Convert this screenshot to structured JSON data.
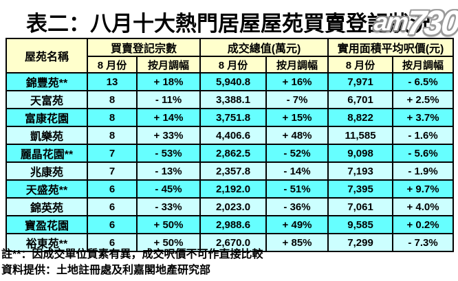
{
  "page": {
    "title": "表二：八月十大熱門居屋屋苑買賣登記狀況",
    "watermark": {
      "prefix": "am",
      "suffix": "730"
    }
  },
  "colors": {
    "header_bg": "#FFFFCC",
    "row_bright": "#66FFFF",
    "row_light": "#CCFFFF",
    "border": "#000000",
    "text": "#000000"
  },
  "table": {
    "name_header": "屋苑名稱",
    "groups": [
      {
        "label": "買賣登記宗數"
      },
      {
        "label": "成交總值(萬元)"
      },
      {
        "label": "實用面積平均呎價(元)"
      }
    ],
    "sub_month": "8 月份",
    "sub_change": "按月調幅",
    "rows": [
      {
        "name": "錦豐苑**",
        "count": "13",
        "count_change": "+ 18%",
        "value": "5,940.8",
        "value_change": "+ 16%",
        "price": "7,971",
        "price_change": "- 6.5%"
      },
      {
        "name": "天富苑",
        "count": "8",
        "count_change": "- 11%",
        "value": "3,388.1",
        "value_change": "- 7%",
        "price": "6,701",
        "price_change": "+ 2.5%"
      },
      {
        "name": "富康花園",
        "count": "8",
        "count_change": "+ 14%",
        "value": "3,751.8",
        "value_change": "+ 15%",
        "price": "8,822",
        "price_change": "+ 3.7%"
      },
      {
        "name": "凱樂苑",
        "count": "8",
        "count_change": "+ 33%",
        "value": "4,406.6",
        "value_change": "+ 48%",
        "price": "11,585",
        "price_change": "- 1.6%"
      },
      {
        "name": "麗晶花園**",
        "count": "7",
        "count_change": "- 53%",
        "value": "2,862.5",
        "value_change": "- 52%",
        "price": "9,098",
        "price_change": "- 5.6%"
      },
      {
        "name": "兆康苑",
        "count": "7",
        "count_change": "- 13%",
        "value": "2,357.8",
        "value_change": "- 14%",
        "price": "7,193",
        "price_change": "- 1.9%"
      },
      {
        "name": "天盛苑**",
        "count": "6",
        "count_change": "- 45%",
        "value": "2,192.0",
        "value_change": "- 51%",
        "price": "7,395",
        "price_change": "+ 9.7%"
      },
      {
        "name": "錦英苑",
        "count": "6",
        "count_change": "- 33%",
        "value": "2,023.0",
        "value_change": "- 36%",
        "price": "7,061",
        "price_change": "+ 4.0%"
      },
      {
        "name": "寶盈花園",
        "count": "6",
        "count_change": "+ 50%",
        "value": "2,988.6",
        "value_change": "+ 49%",
        "price": "9,585",
        "price_change": "+ 0.2%"
      },
      {
        "name": "裕東苑**",
        "count": "6",
        "count_change": "+ 50%",
        "value": "2,670.0",
        "value_change": "+ 85%",
        "price": "7,299",
        "price_change": "- 7.3%"
      }
    ]
  },
  "notes": {
    "note1": "註**：因成交單位質素有異，成交呎價不可作直接比較",
    "note2": "資料提供：土地註冊處及利嘉閣地產研究部"
  },
  "chart_data": {
    "type": "table",
    "title": "表二：八月十大熱門居屋屋苑買賣登記狀況",
    "columns": [
      "屋苑名稱",
      "買賣登記宗數 8月份",
      "買賣登記宗數 按月調幅",
      "成交總值(萬元) 8月份",
      "成交總值(萬元) 按月調幅",
      "實用面積平均呎價(元) 8月份",
      "實用面積平均呎價(元) 按月調幅"
    ],
    "rows": [
      [
        "錦豐苑**",
        13,
        "+18%",
        5940.8,
        "+16%",
        7971,
        "-6.5%"
      ],
      [
        "天富苑",
        8,
        "-11%",
        3388.1,
        "-7%",
        6701,
        "+2.5%"
      ],
      [
        "富康花園",
        8,
        "+14%",
        3751.8,
        "+15%",
        8822,
        "+3.7%"
      ],
      [
        "凱樂苑",
        8,
        "+33%",
        4406.6,
        "+48%",
        11585,
        "-1.6%"
      ],
      [
        "麗晶花園**",
        7,
        "-53%",
        2862.5,
        "-52%",
        9098,
        "-5.6%"
      ],
      [
        "兆康苑",
        7,
        "-13%",
        2357.8,
        "-14%",
        7193,
        "-1.9%"
      ],
      [
        "天盛苑**",
        6,
        "-45%",
        2192.0,
        "-51%",
        7395,
        "+9.7%"
      ],
      [
        "錦英苑",
        6,
        "-33%",
        2023.0,
        "-36%",
        7061,
        "+4.0%"
      ],
      [
        "寶盈花園",
        6,
        "+50%",
        2988.6,
        "+49%",
        9585,
        "+0.2%"
      ],
      [
        "裕東苑**",
        6,
        "+50%",
        2670.0,
        "+85%",
        7299,
        "-7.3%"
      ]
    ],
    "footnotes": [
      "註**：因成交單位質素有異，成交呎價不可作直接比較",
      "資料提供：土地註冊處及利嘉閣地產研究部"
    ]
  }
}
